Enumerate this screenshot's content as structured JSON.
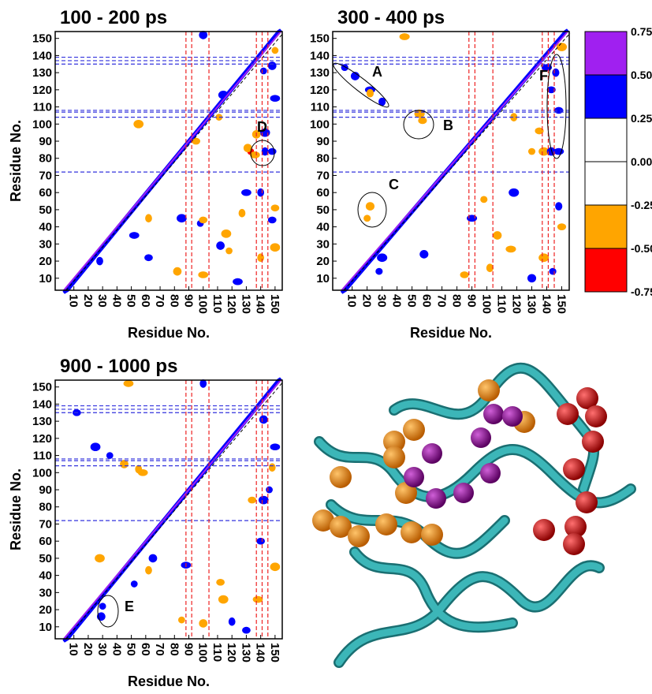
{
  "chart_data": [
    {
      "type": "heatmap",
      "title": "100 - 200 ps",
      "xlabel": "Residue No.",
      "ylabel": "Residue No.",
      "xlim": [
        -3,
        155
      ],
      "ylim": [
        3,
        154
      ],
      "xticks": [
        10,
        20,
        30,
        40,
        50,
        60,
        70,
        80,
        90,
        100,
        110,
        120,
        130,
        140,
        150
      ],
      "yticks": [
        10,
        20,
        30,
        40,
        50,
        60,
        70,
        80,
        90,
        100,
        110,
        120,
        130,
        140,
        150
      ],
      "hlines": [
        72,
        104,
        107,
        108,
        135,
        137,
        139
      ],
      "hline_color": "#3333dd",
      "vlines": [
        88,
        92,
        104,
        137,
        141,
        145
      ],
      "vline_color": "#ee2222",
      "x": [
        133,
        131,
        136,
        143,
        148,
        143,
        142,
        148,
        150,
        140,
        148,
        55,
        111,
        137,
        52,
        28,
        62,
        85,
        98,
        112,
        124,
        62,
        100,
        116,
        118,
        82,
        100,
        140,
        150,
        150,
        150,
        100,
        130,
        127,
        95,
        114
      ],
      "y": [
        84,
        86,
        82,
        84,
        84,
        95,
        131,
        134,
        115,
        60,
        44,
        100,
        104,
        94,
        35,
        20,
        22,
        45,
        42,
        29,
        8,
        45,
        44,
        36,
        26,
        14,
        12,
        22,
        51,
        28,
        143,
        152,
        60,
        48,
        90,
        117
      ],
      "values": [
        -0.6,
        -0.4,
        -0.4,
        0.35,
        0.35,
        0.3,
        0.35,
        0.35,
        0.3,
        0.35,
        0.3,
        -0.3,
        -0.3,
        -0.3,
        0.35,
        0.35,
        0.3,
        0.3,
        0.3,
        0.3,
        0.3,
        -0.3,
        -0.3,
        -0.3,
        -0.3,
        -0.3,
        -0.3,
        -0.3,
        -0.3,
        -0.3,
        -0.3,
        0.35,
        0.35,
        -0.3,
        -0.3,
        0.3
      ],
      "annotations": [
        "D"
      ]
    },
    {
      "type": "heatmap",
      "title": "300 - 400 ps",
      "xlabel": "Residue No.",
      "xlim": [
        -3,
        155
      ],
      "ylim": [
        3,
        154
      ],
      "xticks": [
        10,
        20,
        30,
        40,
        50,
        60,
        70,
        80,
        90,
        100,
        110,
        120,
        130,
        140,
        150
      ],
      "yticks": [
        10,
        20,
        30,
        40,
        50,
        60,
        70,
        80,
        90,
        100,
        110,
        120,
        130,
        140,
        150
      ],
      "hlines": [
        72,
        104,
        107,
        108,
        135,
        137,
        139
      ],
      "hline_color": "#3333dd",
      "vlines": [
        88,
        92,
        104,
        137,
        141,
        145
      ],
      "vline_color": "#ee2222",
      "x": [
        5,
        12,
        22,
        30,
        57,
        55,
        20,
        22,
        140,
        146,
        143,
        138,
        130,
        143,
        148,
        118,
        135,
        118,
        98,
        107,
        116,
        102,
        85,
        30,
        28,
        58,
        90,
        148,
        150,
        138,
        144,
        130,
        45,
        22,
        148,
        150
      ],
      "y": [
        133,
        128,
        120,
        113,
        102,
        106,
        45,
        52,
        133,
        130,
        120,
        84,
        84,
        84,
        84,
        104,
        96,
        60,
        56,
        35,
        27,
        16,
        12,
        22,
        14,
        24,
        45,
        52,
        40,
        22,
        14,
        10,
        151,
        118,
        108,
        145
      ],
      "values": [
        0.3,
        0.3,
        0.3,
        0.3,
        -0.35,
        -0.3,
        -0.35,
        -0.3,
        0.35,
        0.35,
        0.3,
        -0.3,
        -0.35,
        0.35,
        0.35,
        -0.3,
        -0.3,
        0.3,
        -0.3,
        -0.3,
        -0.3,
        -0.3,
        -0.3,
        0.35,
        0.3,
        0.3,
        0.3,
        0.35,
        -0.3,
        -0.3,
        0.3,
        0.3,
        -0.3,
        -0.3,
        0.3,
        -0.3
      ],
      "annotations": [
        "A",
        "B",
        "C",
        "F"
      ]
    },
    {
      "type": "heatmap",
      "title": "900 - 1000 ps",
      "xlabel": "Residue No.",
      "ylabel": "Residue No.",
      "xlim": [
        -3,
        155
      ],
      "ylim": [
        3,
        154
      ],
      "xticks": [
        10,
        20,
        30,
        40,
        50,
        60,
        70,
        80,
        90,
        100,
        110,
        120,
        130,
        140,
        150
      ],
      "yticks": [
        10,
        20,
        30,
        40,
        50,
        60,
        70,
        80,
        90,
        100,
        110,
        120,
        130,
        140,
        150
      ],
      "hlines": [
        72,
        104,
        107,
        108,
        135,
        137,
        139
      ],
      "hline_color": "#3333dd",
      "vlines": [
        88,
        92,
        104,
        137,
        141,
        145
      ],
      "vline_color": "#ee2222",
      "x": [
        30,
        29,
        58,
        55,
        134,
        142,
        146,
        142,
        150,
        148,
        140,
        150,
        52,
        65,
        88,
        62,
        112,
        114,
        85,
        100,
        138,
        120,
        130,
        25,
        35,
        45,
        48,
        100,
        12,
        28
      ],
      "y": [
        22,
        16,
        100,
        102,
        84,
        84,
        90,
        131,
        115,
        103,
        60,
        45,
        35,
        50,
        46,
        43,
        36,
        26,
        14,
        12,
        26,
        13,
        8,
        115,
        110,
        105,
        152,
        152,
        135,
        50
      ],
      "values": [
        0.35,
        0.35,
        -0.35,
        -0.3,
        -0.35,
        0.35,
        0.3,
        0.35,
        0.3,
        -0.3,
        0.35,
        -0.3,
        0.35,
        0.3,
        0.3,
        -0.3,
        -0.3,
        -0.3,
        -0.3,
        -0.3,
        -0.3,
        0.3,
        0.3,
        0.3,
        0.3,
        -0.3,
        -0.3,
        0.35,
        0.3,
        -0.3
      ],
      "annotations": [
        "E"
      ]
    },
    {
      "type": "colorbar",
      "bins": [
        -0.75,
        -0.5,
        -0.25,
        0.25,
        0.5,
        0.75
      ],
      "colors": [
        "#ff0000",
        "#ffa500",
        "#ffffff",
        "#0000ff",
        "#a020f0"
      ],
      "ticks": [
        {
          "value": 0.75,
          "label": "0.75"
        },
        {
          "value": 0.5,
          "label": "0.50"
        },
        0.25,
        {
          "value": 0,
          "label": "0.00"
        },
        -0.25,
        {
          "value": -0.5,
          "label": "-0.50"
        },
        -0.75
      ]
    }
  ]
}
